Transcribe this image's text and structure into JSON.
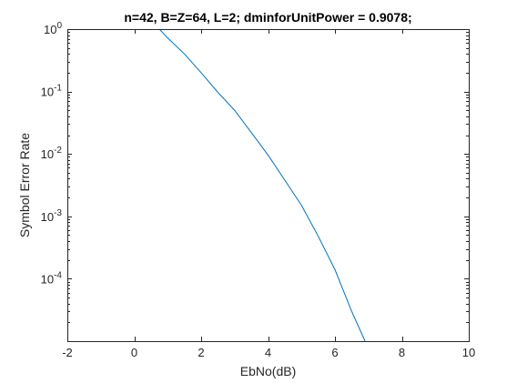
{
  "chart_data": {
    "type": "line",
    "title": "n=42, B=Z=64, L=2; dminforUnitPower = 0.9078;",
    "xlabel": "EbNo(dB)",
    "ylabel": "Symbol Error Rate",
    "xlim": [
      -2,
      10
    ],
    "ylim": [
      1e-05,
      1
    ],
    "yscale": "log",
    "grid": false,
    "legend": "none",
    "x_ticks": [
      "-2",
      "0",
      "2",
      "4",
      "6",
      "8",
      "10"
    ],
    "y_ticks": [
      {
        "base": "10",
        "exp": "0"
      },
      {
        "base": "10",
        "exp": "-1"
      },
      {
        "base": "10",
        "exp": "-2"
      },
      {
        "base": "10",
        "exp": "-3"
      },
      {
        "base": "10",
        "exp": "-4"
      }
    ],
    "series": [
      {
        "color": "#0072bd",
        "x": [
          0.75,
          1,
          1.5,
          2,
          2.5,
          3,
          3.5,
          4,
          4.5,
          5,
          5.5,
          6,
          6.5,
          6.9
        ],
        "y": [
          1.0,
          0.72,
          0.4,
          0.2,
          0.097,
          0.05,
          0.022,
          0.0096,
          0.0038,
          0.0015,
          0.00048,
          0.00014,
          3e-05,
          1e-05
        ]
      }
    ]
  }
}
